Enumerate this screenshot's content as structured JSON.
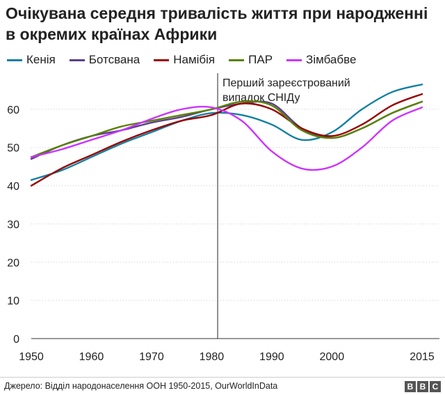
{
  "title": "Очікувана середня тривалість життя при народженні в окремих країнах Африки",
  "source": "Джерело: Відділ народонаселення ООН 1950-2015, OurWorldInData",
  "logo": [
    "B",
    "B",
    "C"
  ],
  "chart_data": {
    "type": "line",
    "x": [
      1950,
      1955,
      1960,
      1965,
      1970,
      1975,
      1980,
      1985,
      1990,
      1995,
      2000,
      2005,
      2010,
      2015
    ],
    "xticks": [
      1950,
      1960,
      1970,
      1980,
      1990,
      2000,
      2015
    ],
    "xlim": [
      1950,
      2015
    ],
    "yticks": [
      0,
      10,
      20,
      30,
      40,
      50,
      60
    ],
    "ylim": [
      0,
      68
    ],
    "grid": "horizontal-dotted",
    "legend_position": "top",
    "series": [
      {
        "name": "Кенія",
        "color": "#1380a1",
        "values": [
          41.5,
          44.0,
          47.5,
          51.0,
          54.0,
          57.0,
          59.0,
          58.5,
          56.0,
          52.0,
          54.0,
          60.0,
          64.5,
          66.5
        ]
      },
      {
        "name": "Ботсвана",
        "color": "#588300",
        "values": [
          47.0,
          50.5,
          53.0,
          54.5,
          56.5,
          58.0,
          60.0,
          61.5,
          61.5,
          55.0,
          52.5,
          55.0,
          59.0,
          62.0
        ]
      },
      {
        "name": "Намібія",
        "color": "#990000",
        "values": [
          40.0,
          44.5,
          48.0,
          51.5,
          54.5,
          57.0,
          58.5,
          61.5,
          60.0,
          55.0,
          53.0,
          56.0,
          61.0,
          64.0
        ]
      },
      {
        "name": "ПАР",
        "color": "#588300",
        "values": [
          47.5,
          50.5,
          53.0,
          55.5,
          57.0,
          58.5,
          60.0,
          62.0,
          61.0,
          54.5,
          52.5,
          55.0,
          59.0,
          62.0
        ]
      },
      {
        "name": "Зімбабве",
        "color": "#cc33ff",
        "values": [
          47.5,
          49.5,
          52.0,
          54.5,
          57.5,
          60.0,
          60.5,
          57.0,
          49.0,
          44.5,
          45.0,
          50.0,
          57.0,
          60.5
        ]
      }
    ],
    "annotation": {
      "x": 1981,
      "lines": [
        "Перший зареєстрований",
        "випадок СНІДу"
      ]
    }
  }
}
